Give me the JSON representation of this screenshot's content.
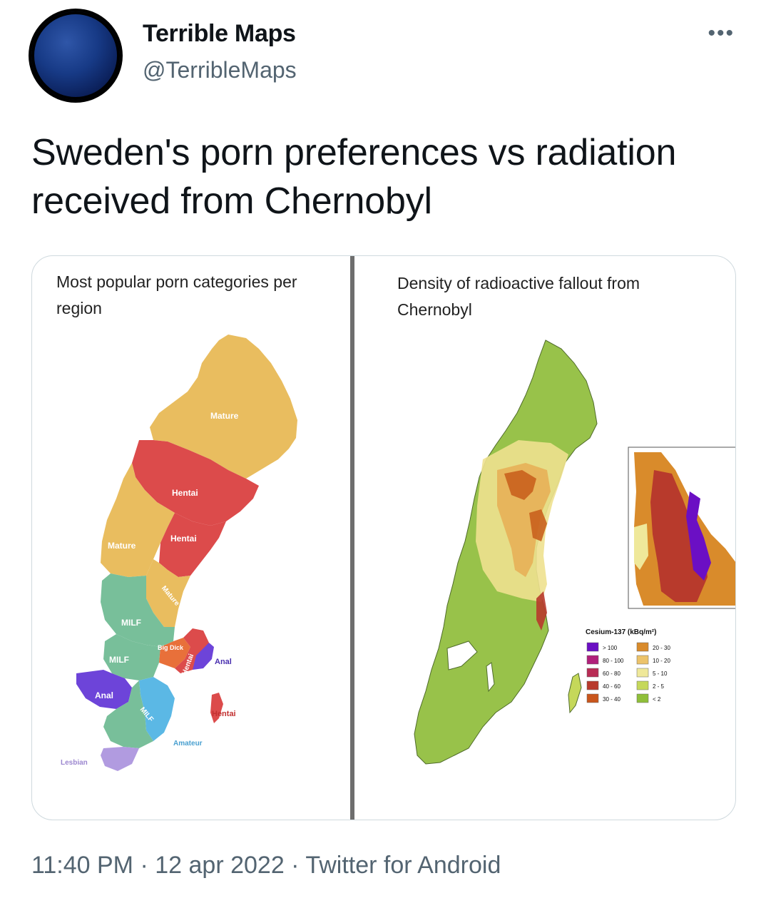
{
  "header": {
    "display_name": "Terrible Maps",
    "handle": "@TerribleMaps",
    "more_icon": "more-horizontal-icon"
  },
  "tweet": {
    "text": "Sweden's porn preferences vs radiation received from Chernobyl"
  },
  "media": {
    "left_map": {
      "title": "Most popular porn categories per region",
      "labels": {
        "mature_north": "Mature",
        "hentai_1": "Hentai",
        "hentai_2": "Hentai",
        "mature_west": "Mature",
        "mature_diag": "Mature",
        "milf_1": "MILF",
        "milf_2": "MILF",
        "big_dick": "Big Dick",
        "hentai_vert": "Hentai",
        "anal_east": "Anal",
        "anal_west": "Anal",
        "milf_3": "MILF",
        "hentai_gotland": "Hentai",
        "amateur": "Amateur",
        "lesbian": "Lesbian"
      }
    },
    "right_map": {
      "title": "Density of radioactive fallout from Chernobyl",
      "legend_title": "Cesium-137 (kBq/m²)",
      "legend_left": [
        {
          "label": "> 100",
          "color": "#6b0fc4"
        },
        {
          "label": "80 - 100",
          "color": "#b0207a"
        },
        {
          "label": "60 - 80",
          "color": "#b82c55"
        },
        {
          "label": "40 - 60",
          "color": "#b83a2c"
        },
        {
          "label": "30 - 40",
          "color": "#c9561c"
        }
      ],
      "legend_right": [
        {
          "label": "20 - 30",
          "color": "#d98b2b"
        },
        {
          "label": "10 - 20",
          "color": "#ecc36a"
        },
        {
          "label": "5 - 10",
          "color": "#efe89a"
        },
        {
          "label": "2 - 5",
          "color": "#c5d85a"
        },
        {
          "label": "< 2",
          "color": "#8fbf3a"
        }
      ]
    }
  },
  "footer": {
    "time": "11:40 PM",
    "date": "12 apr 2022",
    "source": "Twitter for Android"
  }
}
